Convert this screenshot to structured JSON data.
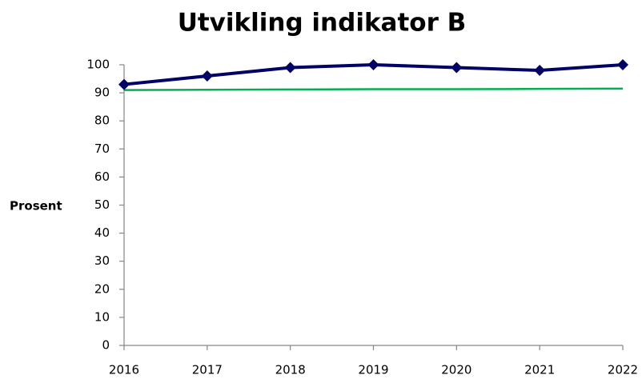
{
  "chart_data": {
    "type": "line",
    "title": "Utvikling indikator B",
    "ylabel": "Prosent",
    "x": [
      2016,
      2017,
      2018,
      2019,
      2020,
      2021,
      2022
    ],
    "xlim": [
      2016,
      2022
    ],
    "xticks": [
      2016,
      2017,
      2018,
      2019,
      2020,
      2021,
      2022
    ],
    "ylim": [
      0,
      100
    ],
    "yticks": [
      0,
      10,
      20,
      30,
      40,
      50,
      60,
      70,
      80,
      90,
      100
    ],
    "grid": false,
    "series": [
      {
        "color": "#000066",
        "marker": "diamond",
        "values": [
          93,
          96,
          99,
          100,
          99,
          98,
          100
        ]
      },
      {
        "color": "#00b050",
        "values": [
          91,
          91.1,
          91.2,
          91.3,
          91.3,
          91.4,
          91.5
        ]
      }
    ]
  }
}
